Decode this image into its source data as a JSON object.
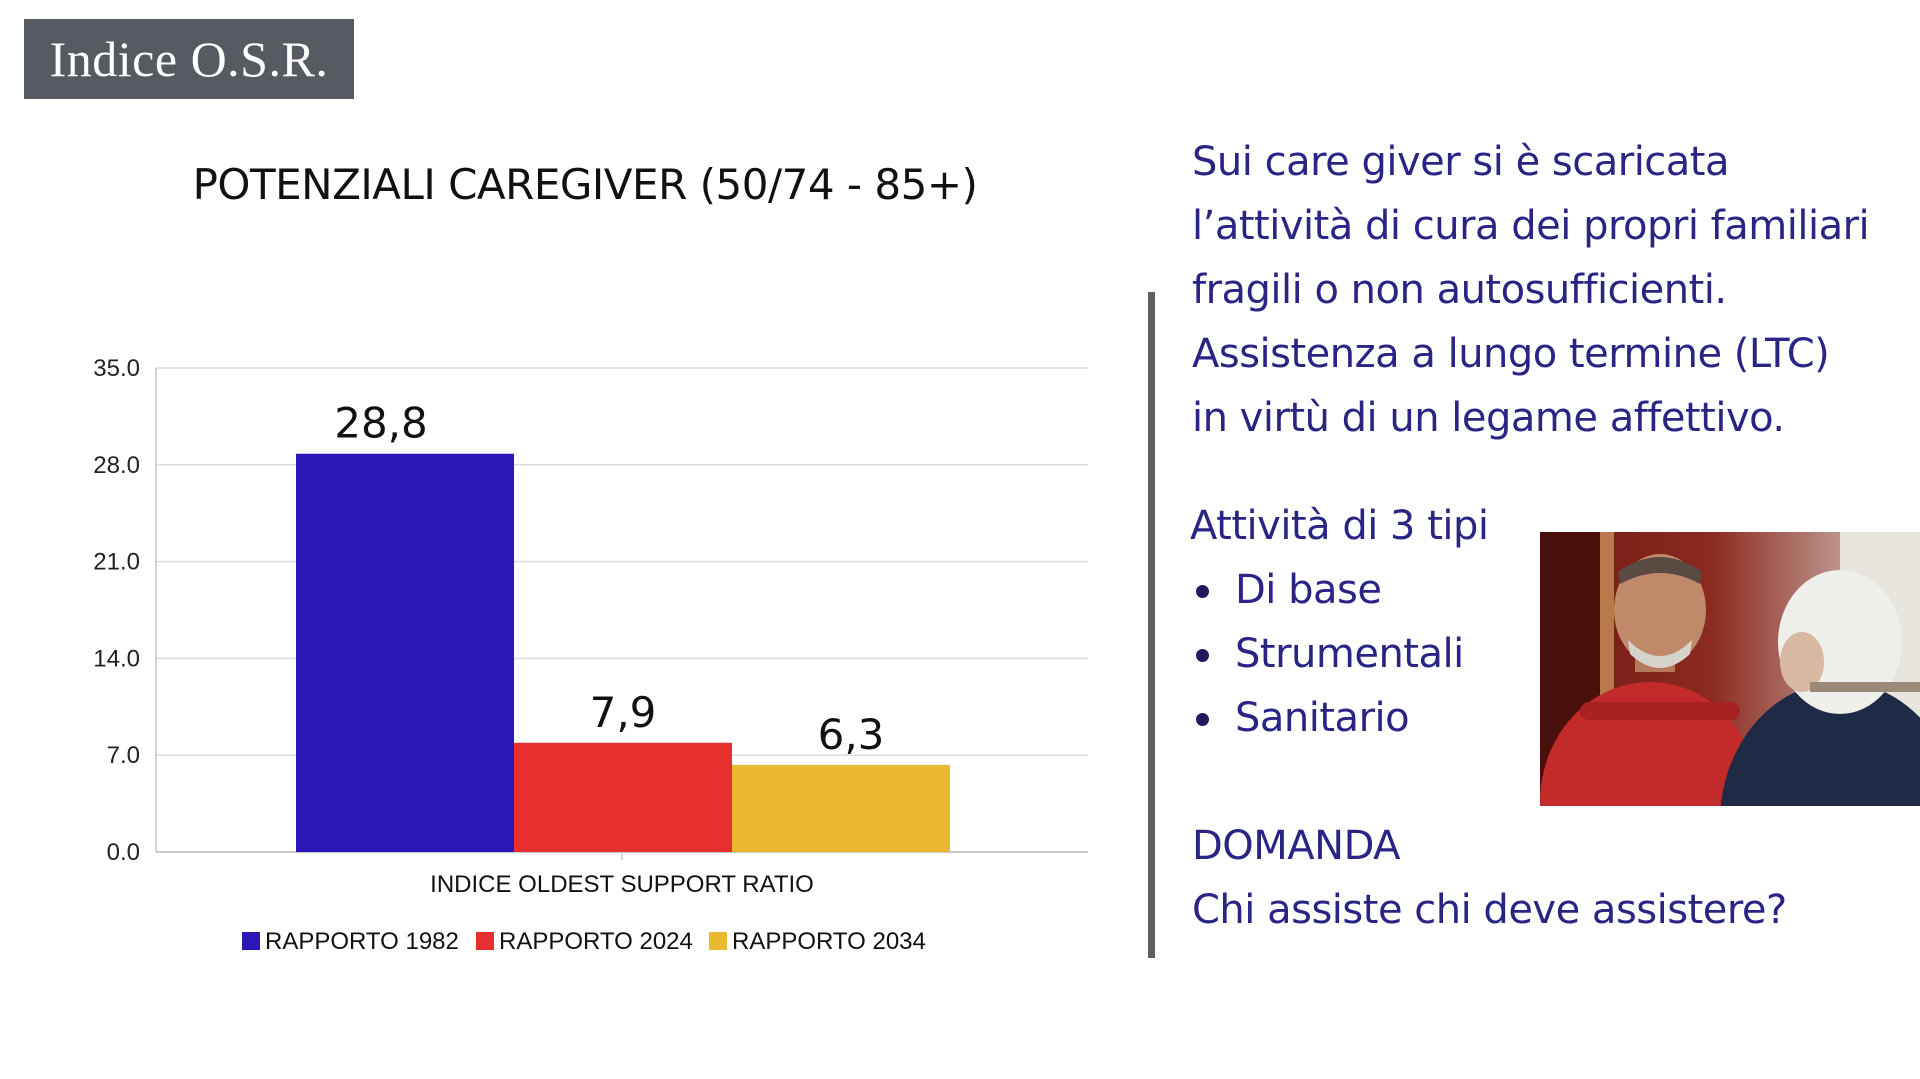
{
  "header": {
    "title": "Indice O.S.R."
  },
  "chart_data": {
    "type": "bar",
    "title": "POTENZIALI CAREGIVER (50/74 - 85+)",
    "xlabel": "INDICE OLDEST SUPPORT RATIO",
    "ylabel": "",
    "ylim": [
      0,
      35
    ],
    "yticks": [
      "0.0",
      "7.0",
      "14.0",
      "21.0",
      "28.0",
      "35.0"
    ],
    "grid": true,
    "legend_position": "bottom",
    "series": [
      {
        "name": "RAPPORTO 1982",
        "value": 28.8,
        "label": "28,8",
        "color": "#2b16b8"
      },
      {
        "name": "RAPPORTO 2024",
        "value": 7.9,
        "label": "7,9",
        "color": "#e63030"
      },
      {
        "name": "RAPPORTO 2034",
        "value": 6.3,
        "label": "6,3",
        "color": "#ebb92f"
      }
    ]
  },
  "description": {
    "lines": [
      "Sui care giver si è scaricata",
      "l’attività di cura dei propri familiari",
      "fragili o non autosufficienti.",
      "Assistenza a lungo termine (LTC)",
      "in virtù di un legame affettivo."
    ]
  },
  "activities": {
    "heading": "Attività di 3 tipi",
    "items": [
      "Di base",
      "Strumentali",
      "Sanitario"
    ]
  },
  "question": {
    "label": "DOMANDA",
    "text": "Chi assiste chi deve assistere?"
  },
  "colors": {
    "accent_text": "#2a2485",
    "badge_bg": "#555b60",
    "divider": "#5d6166"
  }
}
